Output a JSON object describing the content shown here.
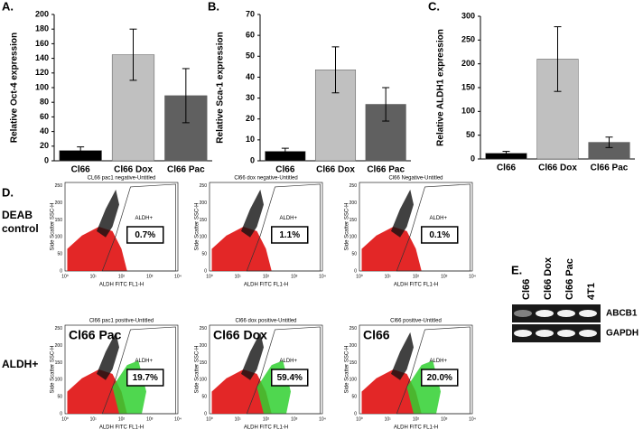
{
  "chart_data": [
    {
      "type": "bar",
      "panel": "A.",
      "ylabel": "Relative Oct-4 expression",
      "categories": [
        "Cl66",
        "Cl66 Dox",
        "Cl66 Pac"
      ],
      "values": [
        14,
        145,
        89
      ],
      "errors": [
        5,
        35,
        37
      ],
      "colors": [
        "#000000",
        "#c0c0c0",
        "#606060"
      ],
      "ylim": [
        0,
        200
      ],
      "yticks": [
        0,
        20,
        40,
        60,
        80,
        100,
        120,
        140,
        160,
        180,
        200
      ]
    },
    {
      "type": "bar",
      "panel": "B.",
      "ylabel": "Relative Sca-1 expression",
      "categories": [
        "Cl66",
        "Cl66 Dox",
        "Cl66 Pac"
      ],
      "values": [
        4.5,
        43.5,
        27
      ],
      "errors": [
        1.5,
        11,
        8
      ],
      "colors": [
        "#000000",
        "#c0c0c0",
        "#606060"
      ],
      "ylim": [
        0,
        70
      ],
      "yticks": [
        0,
        10,
        20,
        30,
        40,
        50,
        60,
        70
      ]
    },
    {
      "type": "bar",
      "panel": "C.",
      "ylabel": "Relative ALDH1 expression",
      "categories": [
        "Cl66",
        "Cl66 Dox",
        "Cl66 Pac"
      ],
      "values": [
        12,
        210,
        35
      ],
      "errors": [
        4,
        68,
        11
      ],
      "colors": [
        "#000000",
        "#c0c0c0",
        "#606060"
      ],
      "ylim": [
        0,
        300
      ],
      "yticks": [
        0,
        50,
        100,
        150,
        200,
        250,
        300
      ]
    }
  ],
  "flow": {
    "panel": "D.",
    "row_labels": [
      [
        "DEAB",
        "control"
      ],
      [
        "ALDH+"
      ]
    ],
    "xlabel": "ALDH FITC FL1-H",
    "ylabel": "Side Scatter SSC-H",
    "xticks": [
      "10⁰",
      "10¹",
      "10²",
      "10³",
      "10⁴"
    ],
    "yticks": [
      "0",
      "50",
      "100",
      "150",
      "200",
      "250"
    ],
    "plots": [
      {
        "title": "CL66 pac1 negative-Untitled",
        "gate": "ALDH+",
        "percent": "0.7%"
      },
      {
        "title": "Cl66 dox negative-Untitled",
        "gate": "ALDH+",
        "percent": "1.1%"
      },
      {
        "title": "Cl66 Negative-Untitled",
        "gate": "ALDH+",
        "percent": "0.1%"
      },
      {
        "title": "Cl66 pac1 positive-Untitled",
        "sample": "Cl66 Pac",
        "gate": "ALDH+",
        "percent": "19.7%"
      },
      {
        "title": "Cl66 dox positive-Untitled",
        "sample": "Cl66 Dox",
        "gate": "ALDH+",
        "percent": "59.4%"
      },
      {
        "title": "Cl66 positive-Untitled",
        "sample": "Cl66",
        "gate": "ALDH+",
        "percent": "20.0%"
      }
    ]
  },
  "gel": {
    "panel": "E.",
    "lanes": [
      "Cl66",
      "Cl66 Dox",
      "Cl66 Pac",
      "4T1"
    ],
    "bands": [
      "ABCB1",
      "GAPDH"
    ]
  }
}
